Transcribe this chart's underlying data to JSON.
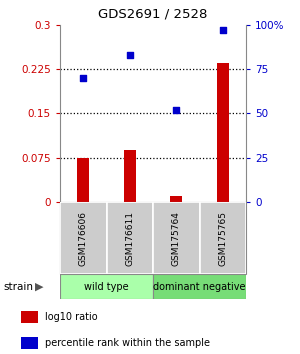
{
  "title": "GDS2691 / 2528",
  "samples": [
    "GSM176606",
    "GSM176611",
    "GSM175764",
    "GSM175765"
  ],
  "log10_ratio": [
    0.075,
    0.088,
    0.01,
    0.235
  ],
  "percentile_rank": [
    70,
    83,
    52,
    97
  ],
  "bar_color": "#cc0000",
  "dot_color": "#0000cc",
  "left_ylim": [
    0,
    0.3
  ],
  "right_ylim": [
    0,
    100
  ],
  "left_yticks": [
    0,
    0.075,
    0.15,
    0.225,
    0.3
  ],
  "right_yticks": [
    0,
    25,
    50,
    75,
    100
  ],
  "right_yticklabels": [
    "0",
    "25",
    "50",
    "75",
    "100%"
  ],
  "left_yticklabels": [
    "0",
    "0.075",
    "0.15",
    "0.225",
    "0.3"
  ],
  "hline_values": [
    0.075,
    0.15,
    0.225
  ],
  "groups": [
    {
      "label": "wild type",
      "indices": [
        0,
        1
      ],
      "color": "#aaffaa"
    },
    {
      "label": "dominant negative",
      "indices": [
        2,
        3
      ],
      "color": "#77dd77"
    }
  ],
  "legend_bar_label": "log10 ratio",
  "legend_dot_label": "percentile rank within the sample",
  "strain_label": "strain",
  "bar_width": 0.25,
  "dot_size": 18,
  "sample_box_color": "#cccccc",
  "sample_box_edgecolor": "#888888",
  "legend_square_size": 8
}
